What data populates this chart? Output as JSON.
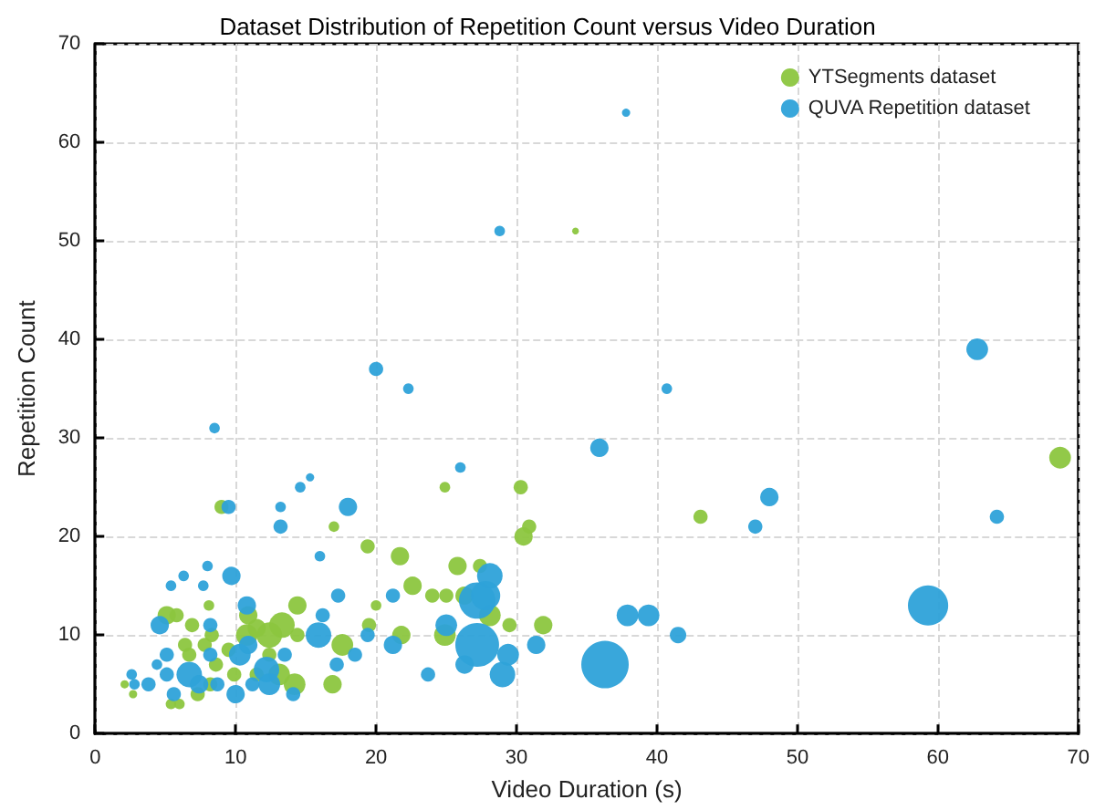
{
  "chart_data": {
    "type": "bubble",
    "title": "Dataset Distribution of Repetition Count versus Video Duration",
    "xlabel": "Video Duration (s)",
    "ylabel": "Repetition Count",
    "xlim": [
      0,
      70
    ],
    "ylim": [
      0,
      70
    ],
    "xticks": [
      0,
      10,
      20,
      30,
      40,
      50,
      60,
      70
    ],
    "yticks": [
      0,
      10,
      20,
      30,
      40,
      50,
      60,
      70
    ],
    "grid": true,
    "legend": "top right",
    "marker": "circle",
    "series": [
      {
        "name": "YTSegments dataset",
        "color": "#8cc63f",
        "x": [
          9,
          17,
          19.4,
          21.7,
          22.6,
          24,
          24.9,
          14.4,
          13.3,
          12.4,
          10.9,
          5.1,
          5.8,
          6.9,
          8.1,
          8.3,
          6.4,
          7.8,
          6.7,
          8.6,
          10.8,
          11.5,
          14.4,
          17.6,
          19.5,
          20,
          21.8,
          24.9,
          16.9,
          14.2,
          13.1,
          8.2,
          7.3,
          5.4,
          6,
          2.7,
          2.1,
          9.9,
          11.5,
          9.5,
          12.4,
          30.3,
          30.9,
          30.5,
          43.1,
          25.8,
          27.4,
          25,
          29.5,
          31.9,
          28.1,
          26.3,
          34.2,
          68.7
        ],
        "values": [
          23,
          21,
          19,
          18,
          15,
          14,
          25,
          13,
          11,
          10,
          12,
          12,
          12,
          11,
          13,
          10,
          9,
          9,
          8,
          7,
          10,
          10.7,
          10,
          9,
          11,
          13,
          10,
          10,
          5,
          5,
          6,
          5,
          4,
          3,
          3,
          4,
          5,
          6,
          6,
          8.5,
          8,
          25,
          21,
          20,
          22,
          17,
          17,
          14,
          11,
          11,
          12,
          14,
          51,
          28
        ],
        "sizes": [
          0.09,
          0.05,
          0.09,
          0.15,
          0.15,
          0.09,
          0.05,
          0.15,
          0.29,
          0.29,
          0.15,
          0.15,
          0.09,
          0.09,
          0.05,
          0.09,
          0.09,
          0.09,
          0.09,
          0.09,
          0.21,
          0.15,
          0.09,
          0.21,
          0.09,
          0.05,
          0.15,
          0.21,
          0.15,
          0.21,
          0.21,
          0.09,
          0.09,
          0.05,
          0.05,
          0.03,
          0.03,
          0.09,
          0.09,
          0.09,
          0.09,
          0.09,
          0.09,
          0.15,
          0.09,
          0.15,
          0.09,
          0.09,
          0.09,
          0.15,
          0.21,
          0.15,
          0.02,
          0.21
        ]
      },
      {
        "name": "QUVA Repetition dataset",
        "color": "#2ea2d9",
        "x": [
          8.5,
          9.5,
          13.2,
          13.2,
          14.6,
          15.3,
          18,
          16,
          17.3,
          16.2,
          21.2,
          10.8,
          7.7,
          6.3,
          5.4,
          8,
          4.6,
          8.2,
          8.2,
          15.9,
          18.5,
          17.2,
          19.4,
          21.2,
          23.7,
          10.3,
          10.9,
          13.5,
          14.1,
          10,
          6.7,
          5.1,
          2.6,
          2.8,
          3.8,
          5.6,
          7.4,
          8.7,
          11.2,
          12.2,
          12.4,
          5.1,
          4.4,
          9.7,
          20,
          22.3,
          28.8,
          37.8,
          40.7,
          35.9,
          26,
          28.1,
          27.2,
          25,
          27.2,
          26.3,
          29,
          29.4,
          31.4,
          27.8,
          36.3,
          37.9,
          39.4,
          41.5,
          48,
          47,
          62.8,
          64.2,
          59.3
        ],
        "values": [
          31,
          23,
          23,
          21,
          25,
          26,
          23,
          18,
          14,
          12,
          14,
          13,
          15,
          16,
          15,
          17,
          11,
          11,
          8,
          10,
          8,
          7,
          10,
          9,
          6,
          8,
          9,
          8,
          4,
          4,
          6,
          6,
          6,
          5,
          5,
          4,
          5,
          5,
          5,
          6.5,
          5,
          8,
          7,
          16,
          37,
          35,
          51,
          63,
          35,
          29,
          27,
          16,
          13.5,
          11,
          9,
          7,
          6,
          8,
          9,
          14,
          7,
          12,
          12,
          10,
          24,
          21,
          39,
          22,
          13
        ],
        "sizes": [
          0.05,
          0.09,
          0.05,
          0.09,
          0.05,
          0.03,
          0.15,
          0.05,
          0.09,
          0.09,
          0.09,
          0.15,
          0.05,
          0.05,
          0.05,
          0.05,
          0.15,
          0.09,
          0.09,
          0.29,
          0.09,
          0.09,
          0.09,
          0.15,
          0.09,
          0.21,
          0.15,
          0.09,
          0.09,
          0.15,
          0.29,
          0.09,
          0.05,
          0.05,
          0.09,
          0.09,
          0.15,
          0.09,
          0.09,
          0.29,
          0.21,
          0.09,
          0.05,
          0.15,
          0.09,
          0.05,
          0.05,
          0.03,
          0.05,
          0.15,
          0.05,
          0.29,
          0.59,
          0.21,
          0.85,
          0.15,
          0.29,
          0.21,
          0.15,
          0.38,
          1,
          0.21,
          0.21,
          0.12,
          0.15,
          0.09,
          0.21,
          0.09,
          0.72
        ]
      }
    ]
  }
}
